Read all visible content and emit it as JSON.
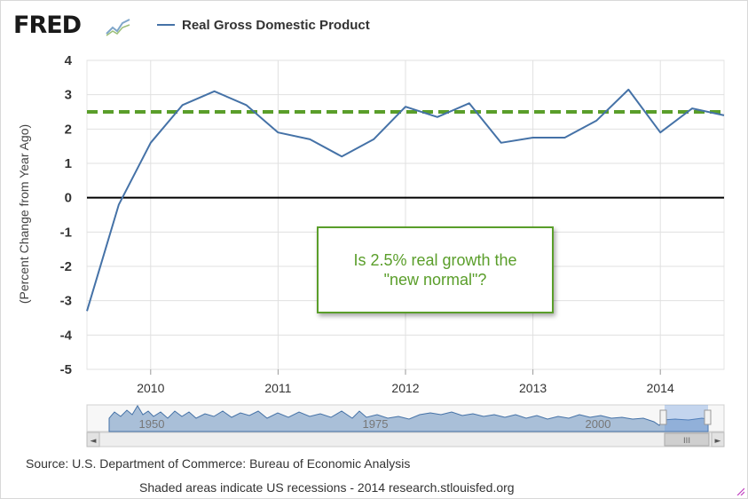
{
  "logo": {
    "text": "FRED",
    "icon": "fred-chart-icon"
  },
  "legend": {
    "label": "Real Gross Domestic Product",
    "color": "#4572a7"
  },
  "annotation": {
    "text": "Is 2.5% real growth the \"new normal\"?"
  },
  "footer": {
    "source": "Source: U.S. Department of Commerce: Bureau of Economic Analysis",
    "shaded": "Shaded areas indicate US recessions - 2014 research.stlouisfed.org"
  },
  "navigator": {
    "labels": [
      "1950",
      "1975",
      "2000"
    ],
    "scroll_left": "◄",
    "scroll_right": "►",
    "thumb_grip": "III"
  },
  "chart_data": {
    "type": "line",
    "title": "",
    "xlabel": "",
    "ylabel": "(Percent Change from Year Ago)",
    "x_range": [
      2009.5,
      2014.5
    ],
    "ylim": [
      -5,
      4
    ],
    "y_ticks": [
      4,
      3,
      2,
      1,
      0,
      -1,
      -2,
      -3,
      -4,
      -5
    ],
    "x_ticks": [
      2010,
      2011,
      2012,
      2013,
      2014
    ],
    "grid": true,
    "series": [
      {
        "name": "Real Gross Domestic Product",
        "color": "#4572a7",
        "x": [
          2009.5,
          2009.75,
          2010,
          2010.25,
          2010.5,
          2010.75,
          2011,
          2011.25,
          2011.5,
          2011.75,
          2012,
          2012.25,
          2012.5,
          2012.75,
          2013,
          2013.25,
          2013.5,
          2013.75,
          2014,
          2014.25,
          2014.5
        ],
        "values": [
          -3.3,
          -0.2,
          1.6,
          2.7,
          3.1,
          2.7,
          1.9,
          1.7,
          1.2,
          1.7,
          2.65,
          2.35,
          2.75,
          1.6,
          1.75,
          1.75,
          2.25,
          3.15,
          1.9,
          2.6,
          2.4
        ]
      }
    ],
    "reference_lines": [
      {
        "name": "2.5% reference",
        "value": 2.5,
        "color": "#5a9e2a",
        "style": "dashed"
      },
      {
        "name": "zero line",
        "value": 0,
        "color": "#000000",
        "style": "solid"
      }
    ]
  }
}
